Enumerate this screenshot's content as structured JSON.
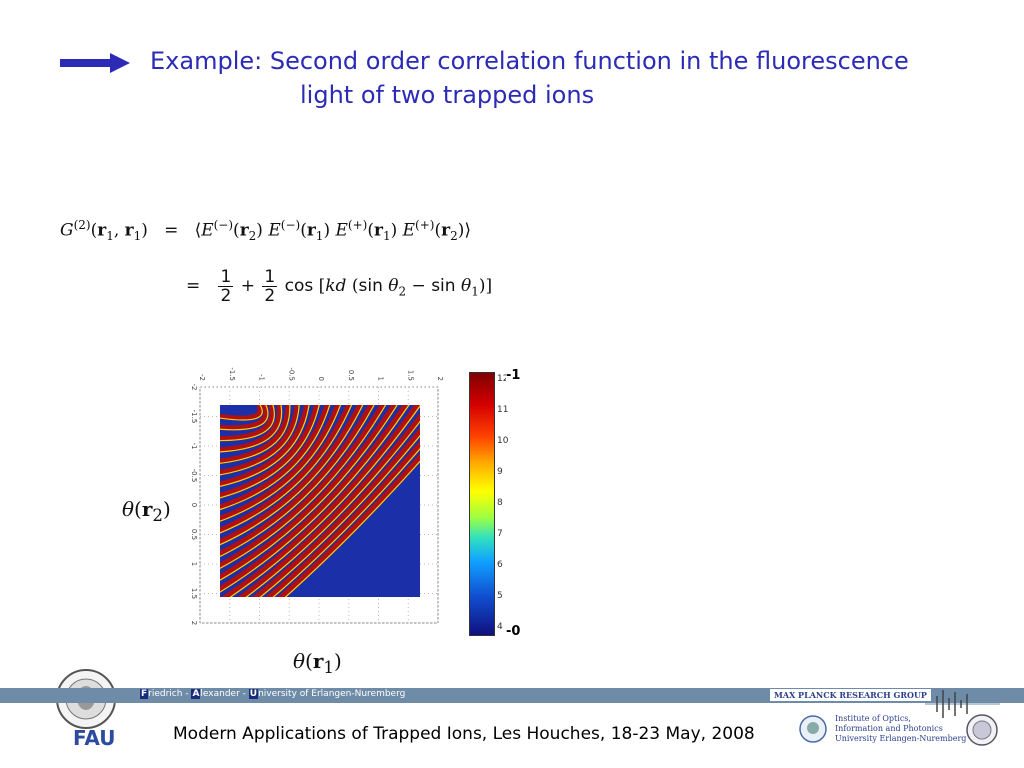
{
  "title": {
    "line1": "Example: Second order correlation function in the fluorescence",
    "line2": "light of two trapped ions"
  },
  "equation": {
    "lhs": "G",
    "lhs_sup": "(2)",
    "lhs_args": "(r1, r1)",
    "rhs1": "⟨E(−)(r2) E(−)(r1) E(+)(r1) E(+)(r2)⟩",
    "rhs2_half": "1",
    "rhs2_den": "2",
    "rhs2_cos": "cos",
    "rhs2_arg": "[kd (sin θ2 − sin θ1)]"
  },
  "plot": {
    "x_ticks": [
      "-2",
      "-1.5",
      "-1",
      "-0.5",
      "0",
      "0.5",
      "1",
      "1.5",
      "2"
    ],
    "y_ticks": [
      "-2",
      "-1.5",
      "-1",
      "-0.5",
      "0",
      "0.5",
      "1",
      "1.5",
      "2"
    ],
    "colorbar_ticks": [
      "12",
      "11",
      "10",
      "9",
      "8",
      "7",
      "6",
      "5",
      "4"
    ],
    "colorbar_top": "-1",
    "colorbar_bottom": "-0",
    "xlabel_sym": "θ",
    "xlabel_arg": "r",
    "xlabel_sub": "1",
    "ylabel_sym": "θ",
    "ylabel_arg": "r",
    "ylabel_sub": "2"
  },
  "footer": {
    "uni_F": "F",
    "uni_rest1": "riedrich - ",
    "uni_A": "A",
    "uni_rest2": "lexander - ",
    "uni_U": "U",
    "uni_rest3": "niversity of Erlangen-Nuremberg",
    "group": "MAX PLANCK RESEARCH GROUP",
    "conference": "Modern Applications of Trapped Ions, Les Houches, 18-23 May, 2008",
    "fau": "FAU",
    "inst_line1": "Institute of Optics,",
    "inst_line2": "Information and Photonics",
    "inst_line3": "University Erlangen-Nuremberg"
  },
  "colors": {
    "title": "#2b2bb5",
    "arrow": "#2b2bb5",
    "footer_bar": "#6e8ca8"
  }
}
